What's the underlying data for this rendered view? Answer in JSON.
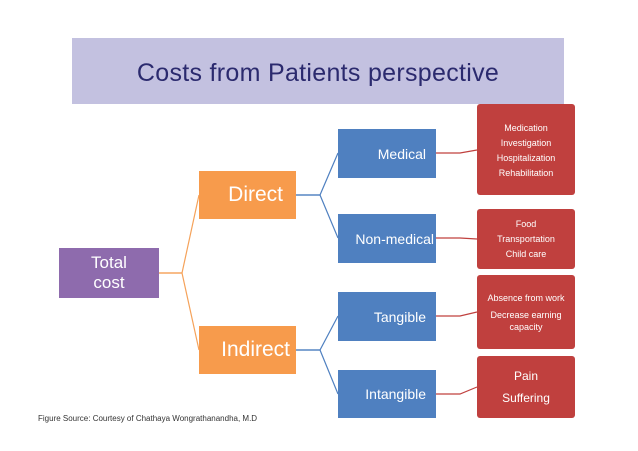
{
  "title": "Costs from Patients perspective",
  "root": {
    "label_line1": "Total",
    "label_line2": "cost"
  },
  "level1": {
    "direct": "Direct",
    "indirect": "Indirect"
  },
  "level2": {
    "medical": "Medical",
    "non_medical": "Non-medical",
    "tangible": "Tangible",
    "intangible": "Intangible"
  },
  "details": {
    "medical": [
      "Medication",
      "Investigation",
      "Hospitalization",
      "Rehabilitation"
    ],
    "non_medical": [
      "Food",
      "Transportation",
      "Child care"
    ],
    "tangible": [
      "Absence from work",
      "Decrease earning capacity"
    ],
    "intangible": [
      "Pain",
      "Suffering"
    ]
  },
  "caption": "Figure Source: Courtesy of Chathaya Wongrathanandha, M.D",
  "colors": {
    "title_bg": "#c3c1e0",
    "title_text": "#2b2a6e",
    "root": "#8e6bad",
    "level1": "#f79b4c",
    "level2": "#4f80c0",
    "details": "#c0403e",
    "connector_orange": "#f5a25a",
    "connector_blue": "#4f80c0",
    "connector_red": "#c0403e"
  }
}
